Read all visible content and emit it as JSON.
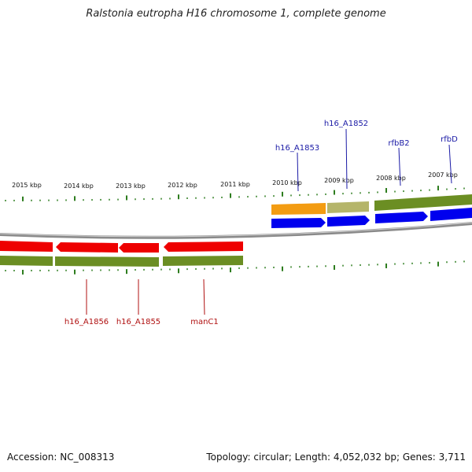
{
  "title": "Ralstonia eutropha H16 chromosome 1, complete genome",
  "footer": {
    "accession": "Accession: NC_008313",
    "topology": "Topology: circular; Length: 4,052,032 bp; Genes: 3,711"
  },
  "colors": {
    "backbone": "#8a8a8a",
    "forward_cds": "#0000ee",
    "reverse_cds": "#ee0000",
    "feature_band": "#6b8e23",
    "orange_feature": "#f39c12",
    "khaki_feature": "#b5b56a",
    "tick": "#2e7d1f",
    "forward_label": "#1a1aa6",
    "reverse_label": "#b01010"
  },
  "scale_labels": [
    "2015 kbp",
    "2014 kbp",
    "2013 kbp",
    "2012 kbp",
    "2011 kbp",
    "2010 kbp",
    "2009 kbp",
    "2008 kbp",
    "2007 kbp"
  ],
  "forward_genes": [
    {
      "name": "h16_A1853"
    },
    {
      "name": "h16_A1852"
    },
    {
      "name": "rfbB2"
    },
    {
      "name": "rfbD"
    }
  ],
  "reverse_genes": [
    {
      "name": "h16_A1856"
    },
    {
      "name": "h16_A1855"
    },
    {
      "name": "manC1"
    }
  ]
}
